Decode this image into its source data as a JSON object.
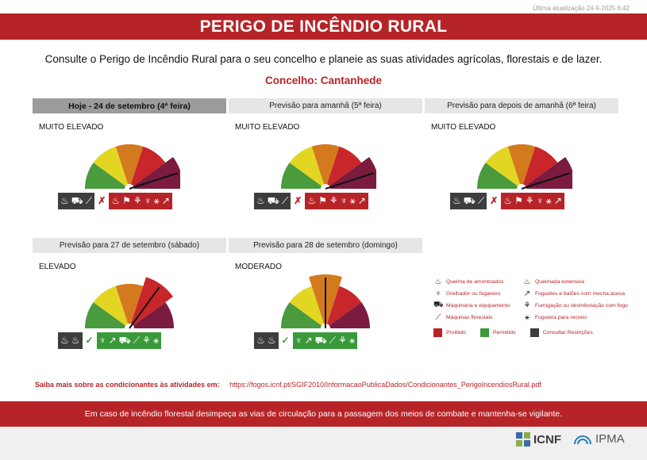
{
  "updated": "Última atualização 24-9-2025 6:42",
  "title": "PERIGO DE INCÊNDIO RURAL",
  "intro": "Consulte o Perigo de Incêndio Rural para o seu concelho e planeie as suas atividades agrícolas, florestais e de lazer.",
  "council": "Concelho: Cantanhede",
  "gauge_colors": [
    "#4a9a3e",
    "#e3d622",
    "#d37a1f",
    "#c8262a",
    "#7a1b3f"
  ],
  "panels": [
    {
      "header": "Hoje - 24 de setembro (4ª feira)",
      "today": true,
      "level": "MUITO ELEVADO",
      "level_index": 4,
      "allowed": [
        "grey-box"
      ],
      "restricted_mark": "✗",
      "status": "prohibited"
    },
    {
      "header": "Previsão para amanhã (5ª feira)",
      "today": false,
      "level": "MUITO ELEVADO",
      "level_index": 4,
      "status": "prohibited"
    },
    {
      "header": "Previsão para depois de amanhã (6ª feira)",
      "today": false,
      "level": "MUITO ELEVADO",
      "level_index": 4,
      "status": "prohibited"
    },
    {
      "header": "Previsão para 27 de setembro (sábado)",
      "today": false,
      "level": "ELEVADO",
      "level_index": 3,
      "status": "permitted"
    },
    {
      "header": "Previsão para 28 de setembro (domingo)",
      "today": false,
      "level": "MODERADO",
      "level_index": 2,
      "status": "permitted"
    }
  ],
  "legend": {
    "items": [
      [
        "Queima de amontoados",
        "Queimada extensiva"
      ],
      [
        "Grelhador ou fogareiro",
        "Foguetes e balões com mecha acesa"
      ],
      [
        "Maquinaria e equipamento",
        "Fumigação ou desinfestação com fogo"
      ],
      [
        "Máquinas florestais",
        "Fogueira para recreio"
      ]
    ],
    "icons": [
      [
        "fire-pile-icon",
        "wide-fire-icon"
      ],
      [
        "grill-icon",
        "rocket-icon"
      ],
      [
        "tractor-icon",
        "fumigation-icon"
      ],
      [
        "chainsaw-icon",
        "campfire-icon"
      ]
    ],
    "swatches": [
      {
        "label": "Proibido",
        "color": "#b72428"
      },
      {
        "label": "Permitido",
        "color": "#3a9a3a"
      },
      {
        "label": "Consultar Restrições",
        "color": "#3d3d3d"
      }
    ]
  },
  "more_label": "Saiba mais sobre as condicionantes às atividades em:",
  "more_url": "https://fogos.icnf.pt/SGIF2010/InformacaoPublicaDados/Condicionantes_PerigoIncendiosRural.pdf",
  "footer": "Em caso de incêndio florestal desimpeça as vias de circulação para a passagem dos meios de combate e mantenha-se vigilante.",
  "logos": {
    "icnf": "ICNF",
    "ipma": "IPMA"
  }
}
